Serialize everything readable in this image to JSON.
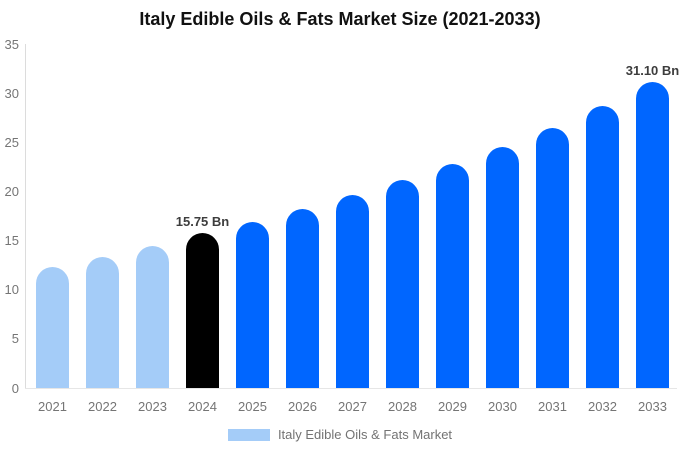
{
  "page": {
    "background": "#ffffff"
  },
  "chart_data": {
    "type": "bar",
    "title": "Italy Edible Oils & Fats Market Size (2021-2033)",
    "unit": "Bn",
    "categories": [
      "2021",
      "2022",
      "2023",
      "2024",
      "2025",
      "2026",
      "2027",
      "2028",
      "2029",
      "2030",
      "2031",
      "2032",
      "2033"
    ],
    "values": [
      12.3,
      13.3,
      14.4,
      15.75,
      16.9,
      18.25,
      19.65,
      21.15,
      22.8,
      24.55,
      26.45,
      28.7,
      31.1
    ],
    "bar_color_keys": [
      "historical",
      "historical",
      "historical",
      "base_year",
      "forecast",
      "forecast",
      "forecast",
      "forecast",
      "forecast",
      "forecast",
      "forecast",
      "forecast",
      "forecast"
    ],
    "palette": {
      "historical": "#a4ccf8",
      "base_year": "#000000",
      "forecast": "#0066ff"
    },
    "annotations": [
      {
        "category": "2024",
        "text": "15.75 Bn"
      },
      {
        "category": "2033",
        "text": "31.10 Bn"
      }
    ],
    "y_axis": {
      "min": 0,
      "max": 35,
      "ticks": [
        0,
        5,
        10,
        15,
        20,
        25,
        30,
        35
      ]
    },
    "xlabel": "",
    "ylabel": "",
    "grid": false,
    "legend": {
      "label": "Italy Edible Oils & Fats Market",
      "position": "bottom",
      "swatch_color": "#a4ccf8"
    },
    "text_colors": {
      "title": "#111111",
      "tick": "#757575",
      "annotation": "#3d3d3d",
      "legend": "#737373"
    }
  }
}
